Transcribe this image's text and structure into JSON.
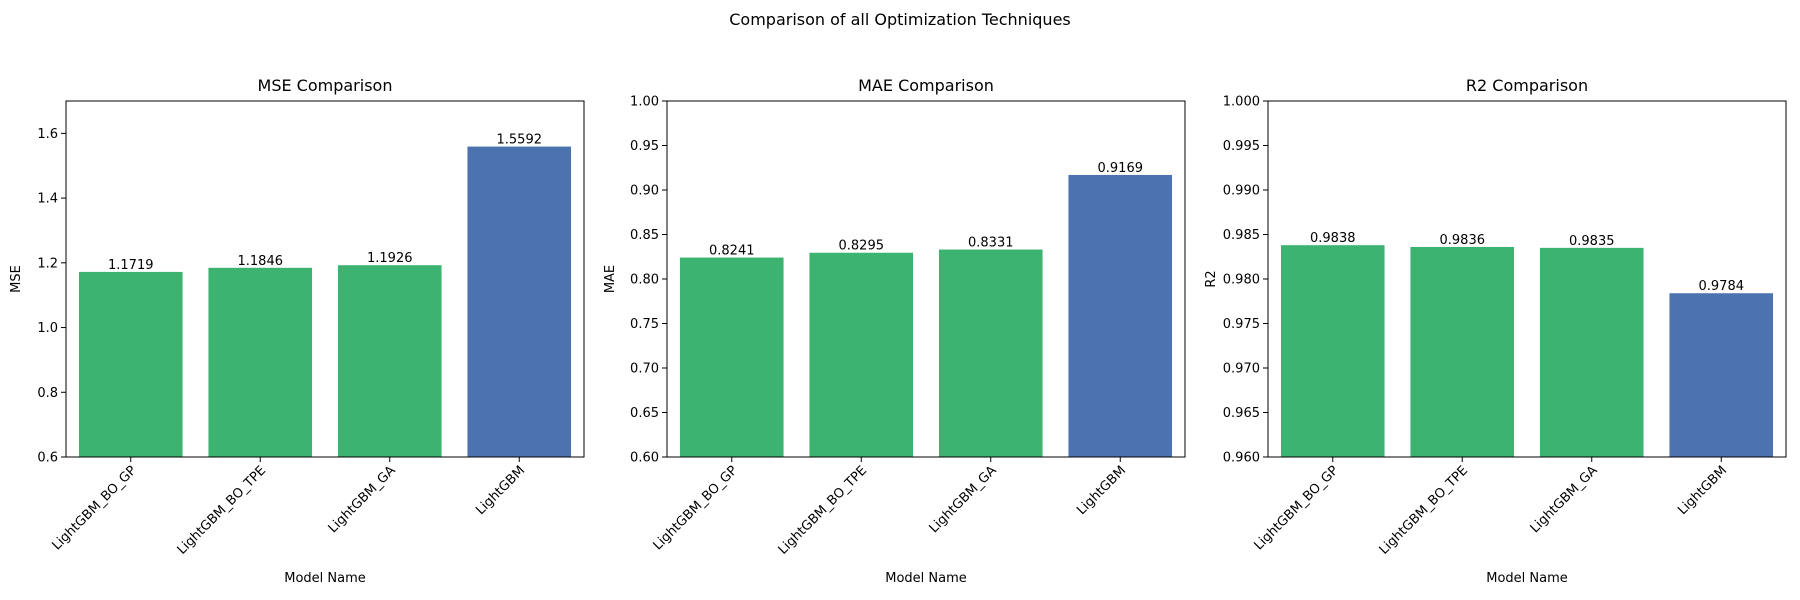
{
  "figure": {
    "title": "Comparison of all Optimization Techniques"
  },
  "colors": {
    "optimized": "#3CB371",
    "baseline": "#4C72B0"
  },
  "chart_data": [
    {
      "type": "bar",
      "title": "MSE Comparison",
      "xlabel": "Model Name",
      "ylabel": "MSE",
      "categories": [
        "LightGBM_BO_GP",
        "LightGBM_BO_TPE",
        "LightGBM_GA",
        "LightGBM"
      ],
      "values": [
        1.1719,
        1.1846,
        1.1926,
        1.5592
      ],
      "value_labels": [
        "1.1719",
        "1.1846",
        "1.1926",
        "1.5592"
      ],
      "bar_colors": [
        "#3CB371",
        "#3CB371",
        "#3CB371",
        "#4C72B0"
      ],
      "ylim": [
        0.6,
        1.7
      ],
      "yticks": [
        0.6,
        0.8,
        1.0,
        1.2,
        1.4,
        1.6
      ],
      "ytick_labels": [
        "0.6",
        "0.8",
        "1.0",
        "1.2",
        "1.4",
        "1.6"
      ],
      "grid": false,
      "legend": "none"
    },
    {
      "type": "bar",
      "title": "MAE Comparison",
      "xlabel": "Model Name",
      "ylabel": "MAE",
      "categories": [
        "LightGBM_BO_GP",
        "LightGBM_BO_TPE",
        "LightGBM_GA",
        "LightGBM"
      ],
      "values": [
        0.8241,
        0.8295,
        0.8331,
        0.9169
      ],
      "value_labels": [
        "0.8241",
        "0.8295",
        "0.8331",
        "0.9169"
      ],
      "bar_colors": [
        "#3CB371",
        "#3CB371",
        "#3CB371",
        "#4C72B0"
      ],
      "ylim": [
        0.6,
        1.0
      ],
      "yticks": [
        0.6,
        0.65,
        0.7,
        0.75,
        0.8,
        0.85,
        0.9,
        0.95,
        1.0
      ],
      "ytick_labels": [
        "0.60",
        "0.65",
        "0.70",
        "0.75",
        "0.80",
        "0.85",
        "0.90",
        "0.95",
        "1.00"
      ],
      "grid": false,
      "legend": "none"
    },
    {
      "type": "bar",
      "title": "R2 Comparison",
      "xlabel": "Model Name",
      "ylabel": "R2",
      "categories": [
        "LightGBM_BO_GP",
        "LightGBM_BO_TPE",
        "LightGBM_GA",
        "LightGBM"
      ],
      "values": [
        0.9838,
        0.9836,
        0.9835,
        0.9784
      ],
      "value_labels": [
        "0.9838",
        "0.9836",
        "0.9835",
        "0.9784"
      ],
      "bar_colors": [
        "#3CB371",
        "#3CB371",
        "#3CB371",
        "#4C72B0"
      ],
      "ylim": [
        0.96,
        1.0
      ],
      "yticks": [
        0.96,
        0.965,
        0.97,
        0.975,
        0.98,
        0.985,
        0.99,
        0.995,
        1.0
      ],
      "ytick_labels": [
        "0.960",
        "0.965",
        "0.970",
        "0.975",
        "0.980",
        "0.985",
        "0.990",
        "0.995",
        "1.000"
      ],
      "grid": false,
      "legend": "none"
    }
  ]
}
